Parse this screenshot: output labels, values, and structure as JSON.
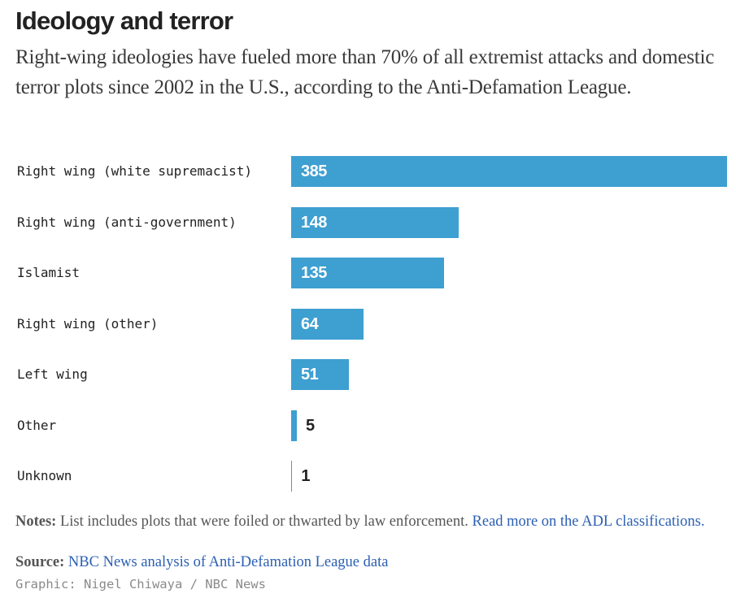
{
  "header": {
    "title": "Ideology and terror",
    "subtitle": "Right-wing ideologies have fueled more than 70% of all extremist attacks and domestic terror plots since 2002 in the U.S., according to the Anti-Defamation League."
  },
  "chart_data": {
    "type": "bar",
    "orientation": "horizontal",
    "title": "Ideology and terror",
    "xlabel": "",
    "ylabel": "",
    "xlim": [
      0,
      385
    ],
    "grid": false,
    "categories": [
      "Right wing (white supremacist)",
      "Right wing (anti-government)",
      "Islamist",
      "Right wing (other)",
      "Left wing",
      "Other",
      "Unknown"
    ],
    "values": [
      385,
      148,
      135,
      64,
      51,
      5,
      1
    ],
    "bar_color": "#3e9fd1"
  },
  "footer": {
    "notes_label": "Notes:",
    "notes_text": " List includes plots that were foiled or thwarted by law enforcement. ",
    "notes_link": "Read more on the ADL classifications.",
    "source_label": "Source:",
    "source_link": "NBC News analysis of Anti-Defamation League data",
    "credit": "Graphic: Nigel Chiwaya / NBC News"
  },
  "colors": {
    "bar": "#3e9fd1",
    "link": "#2b5fb3",
    "text": "#222222"
  }
}
